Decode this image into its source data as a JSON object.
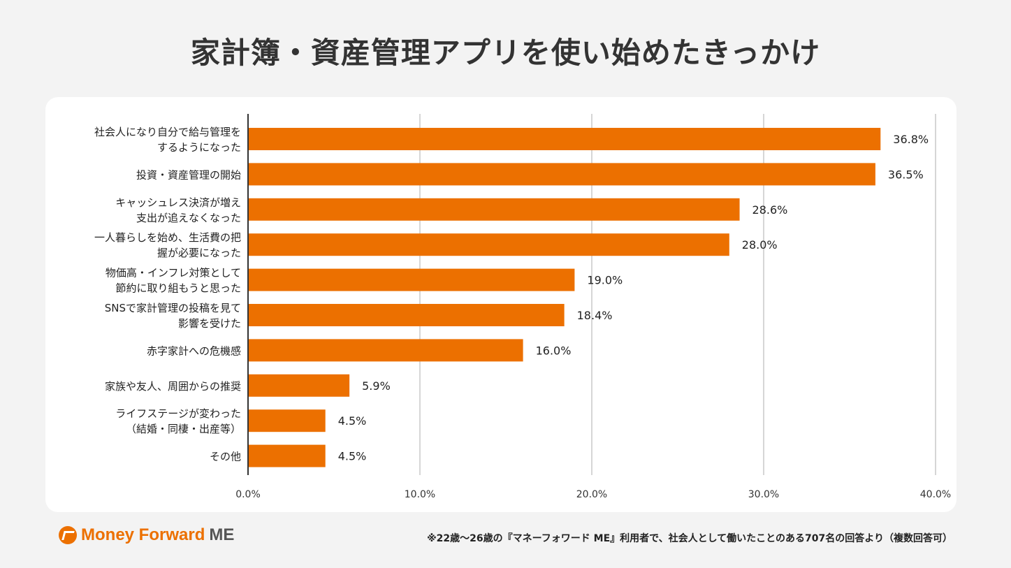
{
  "title": "家計簿・資産管理アプリを使い始めたきっかけ",
  "brand": {
    "name_main": "Money Forward",
    "name_suffix": "ME",
    "color": "#ec7000"
  },
  "footnote": "※22歳〜26歳の『マネーフォワード ME』利用者で、社会人として働いたことのある707名の回答より（複数回答可）",
  "chart_data": {
    "type": "bar",
    "orientation": "horizontal",
    "categories": [
      [
        "社会人になり自分で給与管理を",
        "するようになった"
      ],
      [
        "投資・資産管理の開始"
      ],
      [
        "キャッシュレス決済が増え",
        "支出が追えなくなった"
      ],
      [
        "一人暮らしを始め、生活費の把",
        "握が必要になった"
      ],
      [
        "物価高・インフレ対策として",
        "節約に取り組もうと思った"
      ],
      [
        "SNSで家計管理の投稿を見て",
        "影響を受けた"
      ],
      [
        "赤字家計への危機感"
      ],
      [
        "家族や友人、周囲からの推奨"
      ],
      [
        "ライフステージが変わった",
        "（結婚・同棲・出産等）"
      ],
      [
        "その他"
      ]
    ],
    "values": [
      36.8,
      36.5,
      28.6,
      28.0,
      19.0,
      18.4,
      16.0,
      5.9,
      4.5,
      4.5
    ],
    "data_labels": [
      "36.8%",
      "36.5%",
      "28.6%",
      "28.0%",
      "19.0%",
      "18.4%",
      "16.0%",
      "5.9%",
      "4.5%",
      "4.5%"
    ],
    "xlim": [
      0,
      40
    ],
    "x_ticks": [
      "0.0%",
      "10.0%",
      "20.0%",
      "30.0%",
      "40.0%"
    ],
    "grid": true,
    "bar_color": "#ec7000"
  }
}
